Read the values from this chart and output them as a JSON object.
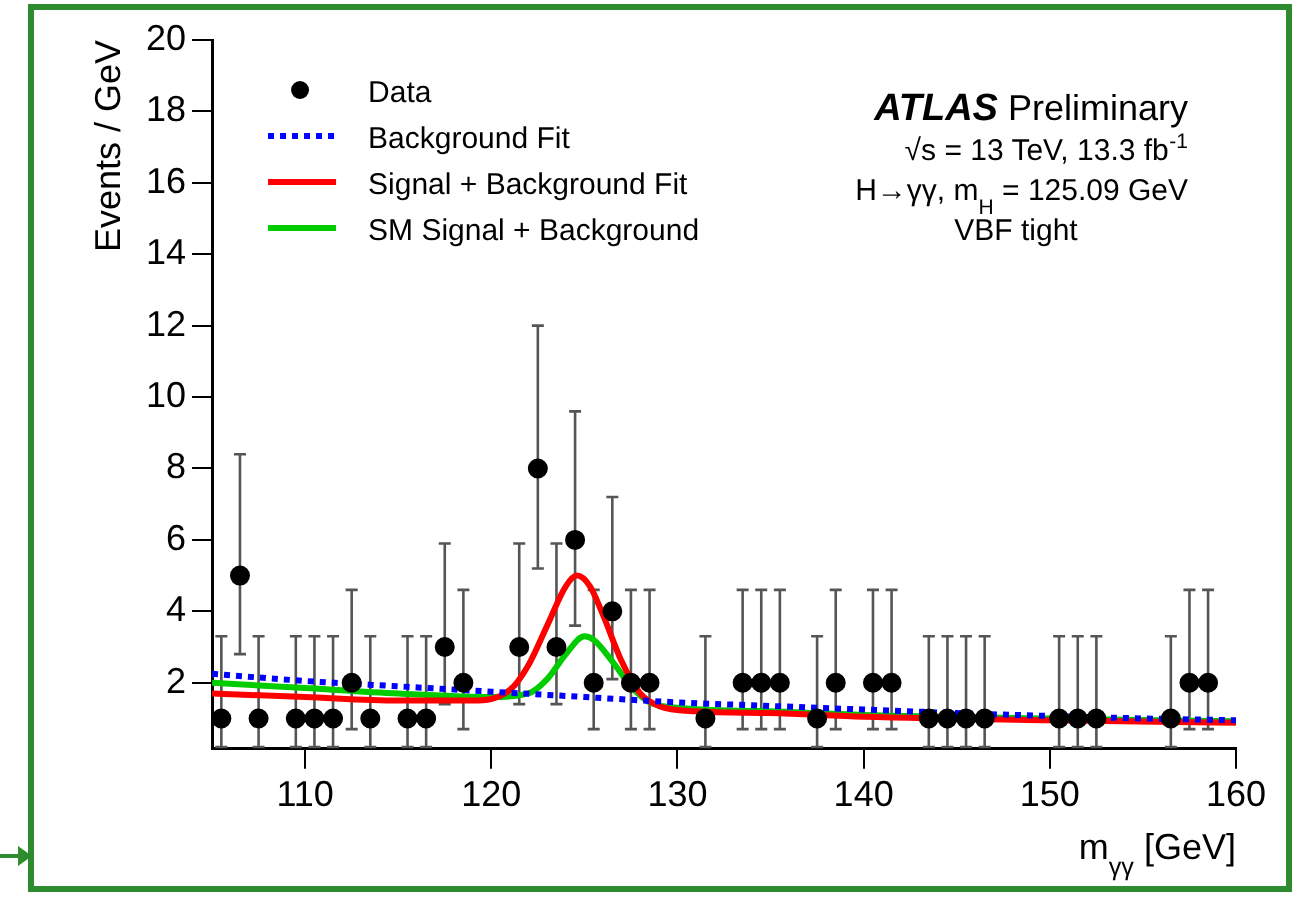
{
  "chart_data": {
    "type": "scatter",
    "xlabel": "m$_{γγ}$ [GeV]",
    "ylabel": "Events / GeV",
    "xlim": [
      105,
      160
    ],
    "xticks": [
      110,
      120,
      130,
      140,
      150,
      160
    ],
    "ylim": [
      0.15,
      20
    ],
    "yticks": [
      2,
      4,
      6,
      8,
      10,
      12,
      14,
      16,
      18,
      20
    ],
    "grid": false,
    "legend": "top left",
    "annotations": [
      "ATLAS Preliminary",
      "√s = 13 TeV, 13.3 fb$^{-1}$",
      "H→γγ, m$_{H}$ = 125.09 GeV",
      "VBF tight"
    ],
    "series": [
      {
        "name": "Data",
        "color": "#000000",
        "marker": "circle",
        "x": [
          105.5,
          106.5,
          107.5,
          109.5,
          110.5,
          111.5,
          112.5,
          113.5,
          115.5,
          116.5,
          117.5,
          118.5,
          121.5,
          122.5,
          123.5,
          124.5,
          125.5,
          126.5,
          127.5,
          128.5,
          131.5,
          133.5,
          134.5,
          135.5,
          137.5,
          138.5,
          140.5,
          141.5,
          143.5,
          144.5,
          145.5,
          146.5,
          150.5,
          151.5,
          152.5,
          156.5,
          157.5,
          158.5
        ],
        "values": [
          1,
          5,
          1,
          1,
          1,
          1,
          2,
          1,
          1,
          1,
          3,
          2,
          3,
          8,
          3,
          6,
          2,
          4,
          2,
          2,
          1,
          2,
          2,
          2,
          1,
          2,
          2,
          2,
          1,
          1,
          1,
          1,
          1,
          1,
          1,
          1,
          2,
          2
        ],
        "errors": [
          [
            0.2,
            3.3
          ],
          [
            2.8,
            8.4
          ],
          [
            0.2,
            3.3
          ],
          [
            0.2,
            3.3
          ],
          [
            0.2,
            3.3
          ],
          [
            0.2,
            3.3
          ],
          [
            0.7,
            4.6
          ],
          [
            0.2,
            3.3
          ],
          [
            0.2,
            3.3
          ],
          [
            0.2,
            3.3
          ],
          [
            1.4,
            5.9
          ],
          [
            0.7,
            4.6
          ],
          [
            1.4,
            5.9
          ],
          [
            5.2,
            12
          ],
          [
            1.4,
            5.9
          ],
          [
            3.6,
            9.6
          ],
          [
            0.7,
            4.6
          ],
          [
            2.1,
            7.2
          ],
          [
            0.7,
            4.6
          ],
          [
            0.7,
            4.6
          ],
          [
            0.2,
            3.3
          ],
          [
            0.7,
            4.6
          ],
          [
            0.7,
            4.6
          ],
          [
            0.7,
            4.6
          ],
          [
            0.2,
            3.3
          ],
          [
            0.7,
            4.6
          ],
          [
            0.7,
            4.6
          ],
          [
            0.7,
            4.6
          ],
          [
            0.2,
            3.3
          ],
          [
            0.2,
            3.3
          ],
          [
            0.2,
            3.3
          ],
          [
            0.2,
            3.3
          ],
          [
            0.2,
            3.3
          ],
          [
            0.2,
            3.3
          ],
          [
            0.2,
            3.3
          ],
          [
            0.2,
            3.3
          ],
          [
            0.7,
            4.6
          ],
          [
            0.7,
            4.6
          ]
        ]
      },
      {
        "name": "Background Fit",
        "type": "line",
        "color": "#0000ff",
        "line_style": "dotted",
        "marker": "none",
        "x": [
          105,
          110,
          115,
          120,
          125,
          130,
          135,
          140,
          145,
          150,
          155,
          160
        ],
        "values": [
          2.25,
          2.05,
          1.9,
          1.75,
          1.6,
          1.45,
          1.35,
          1.25,
          1.15,
          1.07,
          1.0,
          0.95
        ]
      },
      {
        "name": "Signal + Background Fit",
        "type": "line",
        "color": "#ff0000",
        "line_style": "solid",
        "marker": "none",
        "x": [
          105,
          110,
          115,
          119,
          121,
          122,
          123,
          124,
          124.6,
          125.3,
          126,
          127,
          128,
          129,
          131,
          135,
          140,
          150,
          160
        ],
        "values": [
          1.7,
          1.6,
          1.5,
          1.5,
          1.8,
          2.5,
          3.6,
          4.7,
          5.0,
          4.7,
          3.9,
          2.6,
          1.7,
          1.35,
          1.2,
          1.15,
          1.05,
          0.95,
          0.88
        ]
      },
      {
        "name": "SM Signal + Background",
        "type": "line",
        "color": "#00cc00",
        "line_style": "solid",
        "marker": "none",
        "x": [
          105,
          110,
          115,
          120,
          122,
          123,
          124,
          125,
          125.5,
          126.5,
          127.5,
          128.5,
          130,
          135,
          140,
          150,
          160
        ],
        "values": [
          2.0,
          1.85,
          1.7,
          1.6,
          1.7,
          2.1,
          2.8,
          3.3,
          3.2,
          2.6,
          1.9,
          1.45,
          1.3,
          1.2,
          1.1,
          1.0,
          0.92
        ]
      }
    ]
  }
}
